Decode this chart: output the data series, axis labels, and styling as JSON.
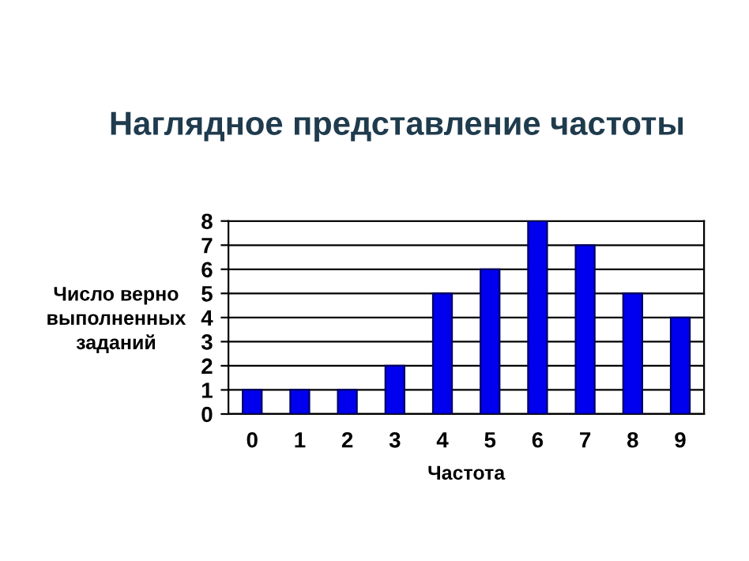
{
  "chart_data": {
    "type": "bar",
    "title": "Наглядное представление частоты",
    "xlabel": "Частота",
    "ylabel": "Число верно\nвыполненных\nзаданий",
    "categories": [
      "0",
      "1",
      "2",
      "3",
      "4",
      "5",
      "6",
      "7",
      "8",
      "9"
    ],
    "values": [
      1,
      1,
      1,
      2,
      5,
      6,
      8,
      7,
      5,
      4
    ],
    "color": "#0000ee",
    "ylim": [
      0,
      8
    ],
    "yticks": [
      0,
      1,
      2,
      3,
      4,
      5,
      6,
      7,
      8
    ],
    "grid": "y"
  }
}
